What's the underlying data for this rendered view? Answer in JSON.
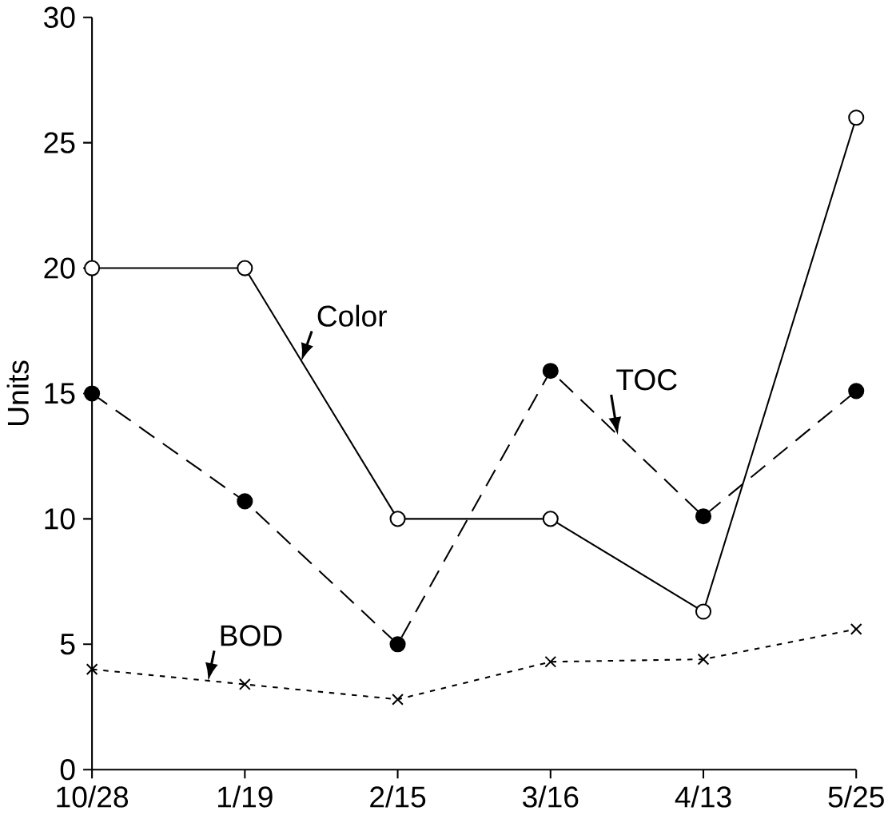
{
  "chart_data": {
    "type": "line",
    "ylabel": "Units",
    "categories": [
      "10/28",
      "1/19",
      "2/15",
      "3/16",
      "4/13",
      "5/25"
    ],
    "series": [
      {
        "name": "Color",
        "color": "#000000",
        "values": [
          20,
          20,
          10,
          10,
          6.3,
          26
        ],
        "marker": "circle",
        "line_style": "solid"
      },
      {
        "name": "TOC",
        "color": "#000000",
        "values": [
          15,
          10.7,
          5,
          15.9,
          10.1,
          15.1
        ],
        "marker": "circle",
        "line_style": "dashed"
      },
      {
        "name": "BOD",
        "color": "#000000",
        "values": [
          4,
          3.4,
          2.8,
          4.3,
          4.4,
          5.6
        ],
        "marker": "cross",
        "line_style": "dotted"
      }
    ],
    "ylim": [
      0,
      30
    ],
    "yticks": [
      0,
      5,
      10,
      15,
      20,
      25,
      30
    ],
    "grid": false
  }
}
